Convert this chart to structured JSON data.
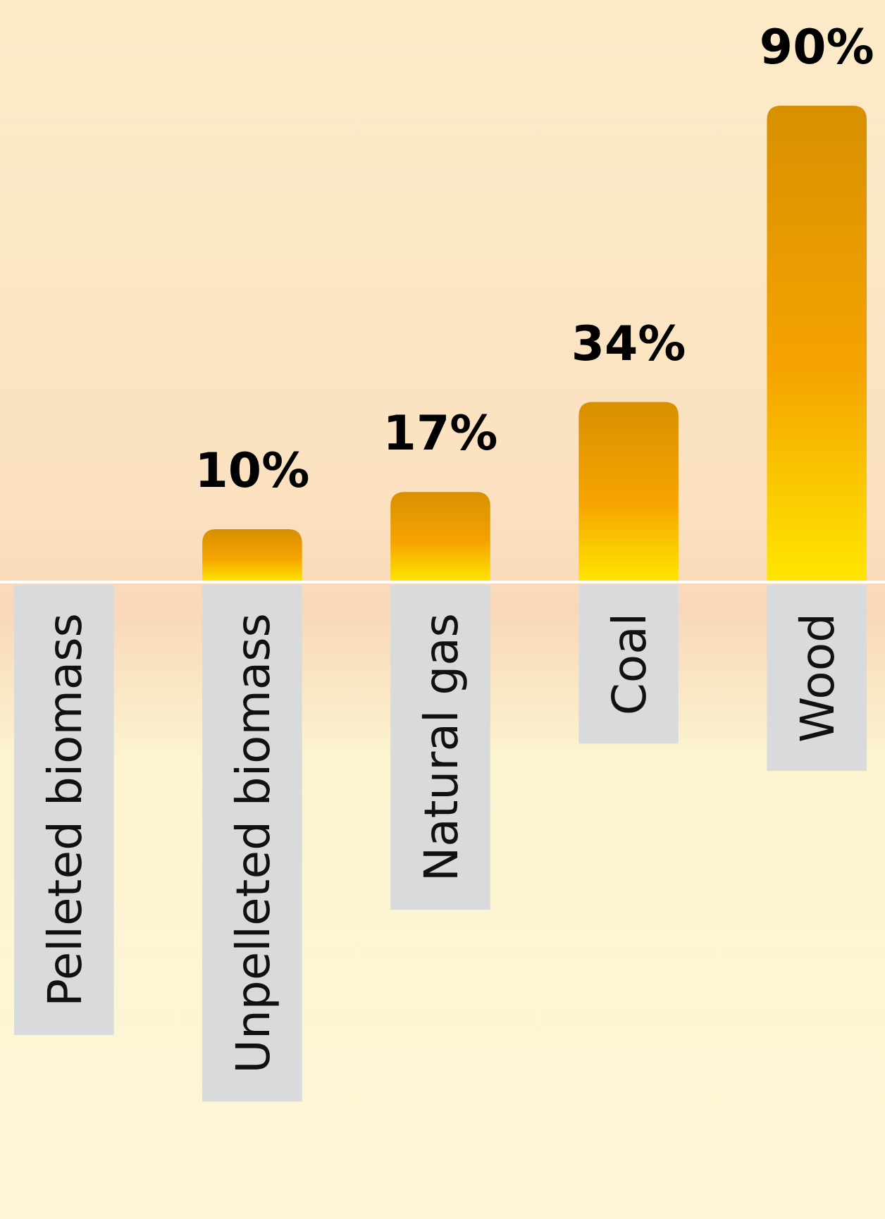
{
  "chart_data": {
    "type": "bar",
    "categories": [
      "Pelleted biomass",
      "Unpelleted biomass",
      "Natural gas",
      "Coal",
      "Wood"
    ],
    "values": [
      0,
      10,
      17,
      34,
      90
    ],
    "value_labels": [
      null,
      "10%",
      "17%",
      "34%",
      "90%"
    ],
    "color": "#f5a300"
  }
}
